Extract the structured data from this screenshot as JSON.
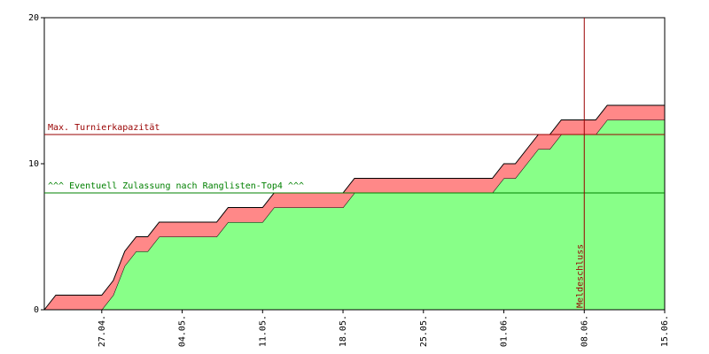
{
  "chart_data": {
    "type": "area",
    "stacked": true,
    "x": [
      "22.04.",
      "23.04.",
      "27.04.",
      "28.04.",
      "29.04.",
      "30.04.",
      "01.05.",
      "02.05.",
      "07.05.",
      "08.05.",
      "11.05.",
      "12.05.",
      "18.05.",
      "19.05.",
      "31.05.",
      "01.06.",
      "02.06.",
      "03.06.",
      "04.06.",
      "05.06.",
      "06.06.",
      "09.06.",
      "10.06.",
      "15.06."
    ],
    "series": [
      {
        "color": "#88ff88",
        "values": [
          0,
          0,
          0,
          1,
          3,
          4,
          4,
          5,
          5,
          6,
          6,
          7,
          7,
          8,
          8,
          9,
          9,
          10,
          11,
          11,
          12,
          12,
          13,
          13
        ]
      },
      {
        "color": "#ff8888",
        "values": [
          0,
          1,
          1,
          1,
          1,
          1,
          1,
          1,
          1,
          1,
          1,
          1,
          1,
          1,
          1,
          1,
          1,
          1,
          1,
          1,
          1,
          1,
          1,
          1
        ]
      }
    ],
    "xlim": [
      "22.04.",
      "15.06."
    ],
    "xticks": [
      "27.04.",
      "04.05.",
      "11.05.",
      "18.05.",
      "25.05.",
      "01.06.",
      "08.06.",
      "15.06."
    ],
    "ylim": [
      0,
      20
    ],
    "yticks": [
      0,
      10,
      20
    ],
    "hlines": [
      {
        "text": "Max. Turnierkapazität",
        "y": 12,
        "color": "#990000"
      },
      {
        "text": "^^^ Eventuell Zulassung nach Ranglisten-Top4 ^^^",
        "y": 8,
        "color": "#008000"
      }
    ],
    "vlines": [
      {
        "text": "Meldeschluss",
        "x": "08.06.",
        "color": "#990000"
      }
    ]
  }
}
